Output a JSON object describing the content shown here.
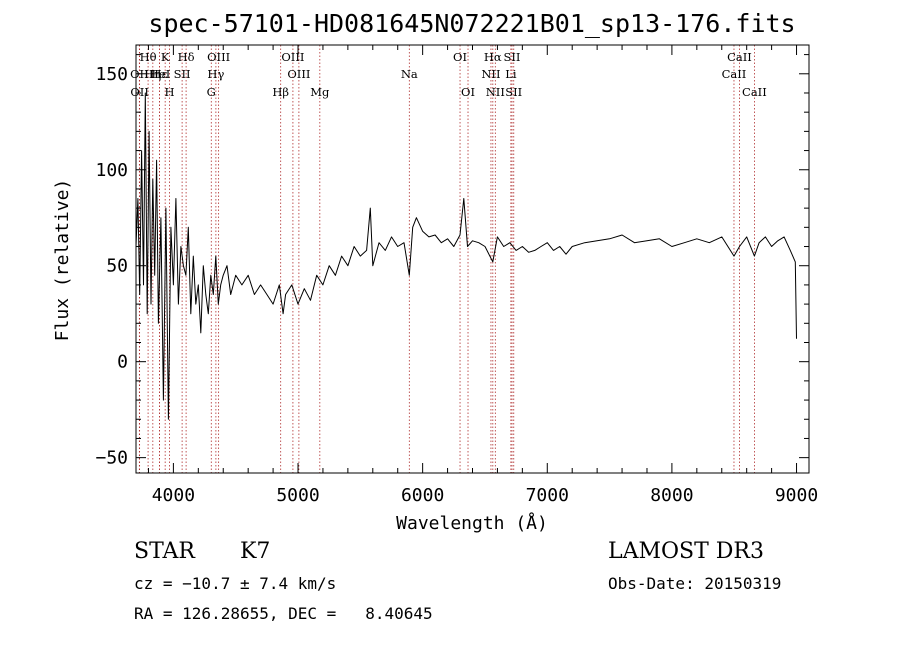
{
  "chart_data": {
    "type": "line",
    "title": "spec-57101-HD081645N072221B01_sp13-176.fits",
    "xlabel": "Wavelength (Å)",
    "ylabel": "Flux (relative)",
    "xlim": [
      3700,
      9100
    ],
    "ylim": [
      -58,
      165
    ],
    "xticks": [
      4000,
      5000,
      6000,
      7000,
      8000,
      9000
    ],
    "yticks": [
      -50,
      0,
      50,
      100,
      150
    ],
    "grid": false,
    "line_color": "#000000",
    "series": [
      {
        "name": "flux",
        "x": [
          3700,
          3715,
          3730,
          3745,
          3760,
          3775,
          3790,
          3805,
          3820,
          3835,
          3850,
          3865,
          3880,
          3900,
          3920,
          3940,
          3960,
          3980,
          4000,
          4020,
          4040,
          4060,
          4080,
          4100,
          4120,
          4140,
          4160,
          4180,
          4200,
          4220,
          4240,
          4260,
          4280,
          4300,
          4320,
          4340,
          4360,
          4380,
          4400,
          4430,
          4460,
          4500,
          4550,
          4600,
          4650,
          4700,
          4750,
          4800,
          4850,
          4880,
          4900,
          4950,
          5000,
          5050,
          5100,
          5150,
          5200,
          5250,
          5300,
          5350,
          5400,
          5450,
          5500,
          5550,
          5580,
          5600,
          5650,
          5700,
          5750,
          5800,
          5850,
          5893,
          5920,
          5950,
          6000,
          6050,
          6100,
          6150,
          6200,
          6250,
          6300,
          6330,
          6360,
          6400,
          6450,
          6500,
          6563,
          6600,
          6650,
          6700,
          6750,
          6800,
          6850,
          6900,
          6950,
          7000,
          7050,
          7100,
          7150,
          7200,
          7300,
          7400,
          7500,
          7600,
          7700,
          7800,
          7900,
          8000,
          8100,
          8200,
          8300,
          8400,
          8498,
          8542,
          8600,
          8662,
          8700,
          8750,
          8800,
          8850,
          8900,
          8950,
          8990,
          9000
        ],
        "y": [
          60,
          85,
          35,
          110,
          40,
          140,
          25,
          120,
          30,
          95,
          45,
          105,
          20,
          75,
          -20,
          80,
          -30,
          70,
          40,
          85,
          30,
          60,
          50,
          45,
          70,
          25,
          55,
          30,
          40,
          15,
          50,
          35,
          25,
          45,
          35,
          55,
          30,
          40,
          45,
          50,
          35,
          45,
          40,
          45,
          35,
          40,
          35,
          30,
          40,
          25,
          35,
          40,
          30,
          38,
          32,
          45,
          40,
          50,
          45,
          55,
          50,
          60,
          55,
          58,
          80,
          50,
          62,
          58,
          65,
          60,
          62,
          45,
          70,
          75,
          68,
          65,
          66,
          62,
          64,
          60,
          66,
          85,
          60,
          63,
          62,
          60,
          52,
          65,
          60,
          62,
          58,
          60,
          57,
          58,
          60,
          62,
          58,
          60,
          56,
          60,
          62,
          63,
          64,
          66,
          62,
          63,
          64,
          60,
          62,
          64,
          62,
          65,
          55,
          60,
          65,
          55,
          62,
          65,
          60,
          63,
          65,
          58,
          52,
          12
        ]
      }
    ],
    "annotations": [
      {
        "label": "Hθ",
        "x": 3797,
        "row": 0
      },
      {
        "label": "OII",
        "x": 3727,
        "row": 1
      },
      {
        "label": "Hη",
        "x": 3835,
        "row": 1
      },
      {
        "label": "OII",
        "x": 3729,
        "row": 2
      },
      {
        "label": "Hε",
        "x": 3889,
        "row": 1
      },
      {
        "label": "K",
        "x": 3934,
        "row": 0
      },
      {
        "label": "H",
        "x": 3969,
        "row": 2
      },
      {
        "label": "HeI",
        "x": 3889,
        "row": 1
      },
      {
        "label": "SII",
        "x": 4070,
        "row": 1
      },
      {
        "label": "Hδ",
        "x": 4102,
        "row": 0
      },
      {
        "label": "OIII",
        "x": 4363,
        "row": 0
      },
      {
        "label": "Hγ",
        "x": 4341,
        "row": 1
      },
      {
        "label": "G",
        "x": 4304,
        "row": 2
      },
      {
        "label": "Hβ",
        "x": 4861,
        "row": 2
      },
      {
        "label": "OIII",
        "x": 4959,
        "row": 0
      },
      {
        "label": "OIII",
        "x": 5007,
        "row": 1
      },
      {
        "label": "Mg",
        "x": 5175,
        "row": 2
      },
      {
        "label": "Na",
        "x": 5893,
        "row": 1
      },
      {
        "label": "OI",
        "x": 6300,
        "row": 0
      },
      {
        "label": "OI",
        "x": 6364,
        "row": 2
      },
      {
        "label": "Hα",
        "x": 6563,
        "row": 0
      },
      {
        "label": "NII",
        "x": 6548,
        "row": 1
      },
      {
        "label": "NII",
        "x": 6583,
        "row": 2
      },
      {
        "label": "SII",
        "x": 6717,
        "row": 0
      },
      {
        "label": "Li",
        "x": 6708,
        "row": 1
      },
      {
        "label": "SII",
        "x": 6731,
        "row": 2
      },
      {
        "label": "CaII",
        "x": 8542,
        "row": 0
      },
      {
        "label": "CaII",
        "x": 8498,
        "row": 1
      },
      {
        "label": "CaII",
        "x": 8662,
        "row": 2
      }
    ]
  },
  "info": {
    "class": "STAR",
    "subclass": "K7",
    "survey": "LAMOST DR3",
    "redshift": "cz = −10.7 ± 7.4 km/s",
    "obs_date": "Obs-Date: 20150319",
    "coords": "RA = 126.28655, DEC =   8.40645"
  }
}
